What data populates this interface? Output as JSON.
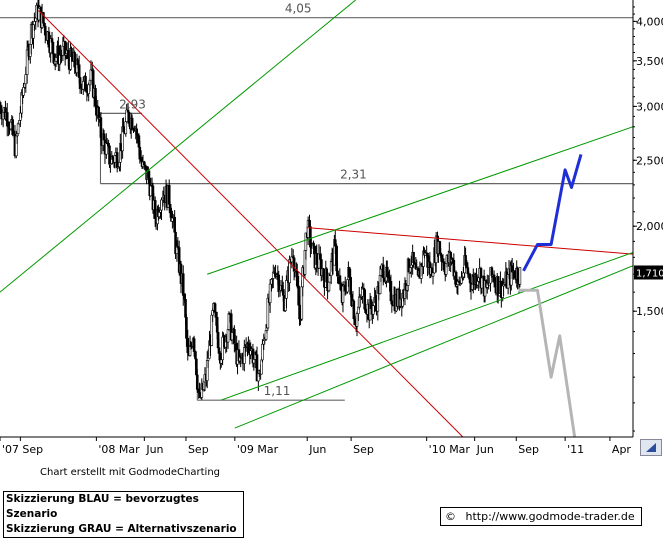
{
  "chart_data": {
    "type": "candlestick",
    "y_scale": "log",
    "ylim": [
      0.98,
      4.3
    ],
    "xlim": [
      "2007-08-01",
      "2011-05-31"
    ],
    "y_ticks": [
      {
        "value": 4.0,
        "label": "4,000"
      },
      {
        "value": 3.5,
        "label": "3,500"
      },
      {
        "value": 3.0,
        "label": "3,000"
      },
      {
        "value": 2.5,
        "label": "2,500"
      },
      {
        "value": 2.0,
        "label": "2,000"
      },
      {
        "value": 1.5,
        "label": "1,500"
      }
    ],
    "x_ticks": [
      {
        "date": "2007-08-01",
        "label": "'07"
      },
      {
        "date": "2007-09-15",
        "label": "Sep"
      },
      {
        "date": "2008-03-01",
        "label": "'08 Mar"
      },
      {
        "date": "2008-06-15",
        "label": "Jun"
      },
      {
        "date": "2008-09-15",
        "label": "Sep"
      },
      {
        "date": "2009-01-01",
        "label": "'09 Mar"
      },
      {
        "date": "2009-06-10",
        "label": "Jun"
      },
      {
        "date": "2009-09-15",
        "label": "Sep"
      },
      {
        "date": "2010-03-01",
        "label": "'10 Mar"
      },
      {
        "date": "2010-06-15",
        "label": "Jun"
      },
      {
        "date": "2010-09-15",
        "label": "Sep"
      },
      {
        "date": "2011-01-01",
        "label": "'11"
      },
      {
        "date": "2011-04-10",
        "label": "Apr"
      }
    ],
    "price_path": [
      [
        "2007-08-01",
        3.0
      ],
      [
        "2007-08-20",
        2.9
      ],
      [
        "2007-09-05",
        2.6
      ],
      [
        "2007-09-20",
        3.1
      ],
      [
        "2007-10-10",
        3.9
      ],
      [
        "2007-10-25",
        4.15
      ],
      [
        "2007-11-10",
        3.9
      ],
      [
        "2007-12-01",
        3.55
      ],
      [
        "2007-12-20",
        3.6
      ],
      [
        "2008-01-15",
        3.45
      ],
      [
        "2008-02-01",
        3.2
      ],
      [
        "2008-02-20",
        3.3
      ],
      [
        "2008-03-10",
        2.75
      ],
      [
        "2008-04-01",
        2.5
      ],
      [
        "2008-04-20",
        2.55
      ],
      [
        "2008-05-10",
        2.9
      ],
      [
        "2008-05-25",
        2.85
      ],
      [
        "2008-06-10",
        2.45
      ],
      [
        "2008-06-25",
        2.35
      ],
      [
        "2008-07-10",
        2.05
      ],
      [
        "2008-07-25",
        2.25
      ],
      [
        "2008-08-10",
        2.2
      ],
      [
        "2008-08-25",
        1.85
      ],
      [
        "2008-09-10",
        1.6
      ],
      [
        "2008-09-20",
        1.25
      ],
      [
        "2008-10-01",
        1.4
      ],
      [
        "2008-10-15",
        1.1
      ],
      [
        "2008-10-30",
        1.2
      ],
      [
        "2008-11-15",
        1.5
      ],
      [
        "2008-12-01",
        1.3
      ],
      [
        "2008-12-20",
        1.45
      ],
      [
        "2009-01-10",
        1.25
      ],
      [
        "2009-02-01",
        1.35
      ],
      [
        "2009-02-25",
        1.2
      ],
      [
        "2009-03-15",
        1.5
      ],
      [
        "2009-04-01",
        1.75
      ],
      [
        "2009-04-20",
        1.55
      ],
      [
        "2009-05-10",
        1.85
      ],
      [
        "2009-05-25",
        1.45
      ],
      [
        "2009-06-10",
        2.0
      ],
      [
        "2009-06-25",
        1.8
      ],
      [
        "2009-07-10",
        1.75
      ],
      [
        "2009-07-25",
        1.65
      ],
      [
        "2009-08-10",
        1.85
      ],
      [
        "2009-08-25",
        1.55
      ],
      [
        "2009-09-10",
        1.7
      ],
      [
        "2009-09-25",
        1.45
      ],
      [
        "2009-10-10",
        1.6
      ],
      [
        "2009-10-25",
        1.5
      ],
      [
        "2009-11-10",
        1.55
      ],
      [
        "2009-11-25",
        1.75
      ],
      [
        "2009-12-10",
        1.6
      ],
      [
        "2009-12-25",
        1.55
      ],
      [
        "2010-01-10",
        1.6
      ],
      [
        "2010-01-25",
        1.8
      ],
      [
        "2010-02-10",
        1.65
      ],
      [
        "2010-02-25",
        1.85
      ],
      [
        "2010-03-10",
        1.7
      ],
      [
        "2010-03-25",
        1.9
      ],
      [
        "2010-04-10",
        1.75
      ],
      [
        "2010-04-25",
        1.8
      ],
      [
        "2010-05-10",
        1.62
      ],
      [
        "2010-05-25",
        1.75
      ],
      [
        "2010-06-10",
        1.65
      ],
      [
        "2010-06-25",
        1.72
      ],
      [
        "2010-07-10",
        1.6
      ],
      [
        "2010-07-25",
        1.7
      ],
      [
        "2010-08-10",
        1.62
      ],
      [
        "2010-08-25",
        1.66
      ],
      [
        "2010-09-10",
        1.72
      ],
      [
        "2010-09-25",
        1.7
      ]
    ],
    "horizontal_levels": [
      {
        "value": 4.05,
        "label": "4,05",
        "from": "2007-08-01",
        "to": "2011-05-31"
      },
      {
        "value": 2.93,
        "label": "2,93",
        "from": "2008-03-10",
        "to": "2008-06-10"
      },
      {
        "value": 2.31,
        "label": "2,31",
        "from": "2008-03-10",
        "to": "2011-05-31"
      },
      {
        "value": 1.11,
        "label": "1,11",
        "from": "2008-10-10",
        "to": "2009-09-01"
      }
    ],
    "trendlines": [
      {
        "color": "#cc0000",
        "points": [
          [
            "2007-10-25",
            4.15
          ],
          [
            "2010-05-20",
            0.98
          ]
        ]
      },
      {
        "color": "#cc0000",
        "points": [
          [
            "2009-06-10",
            1.99
          ],
          [
            "2011-05-31",
            1.82
          ]
        ]
      },
      {
        "color": "#009900",
        "points": [
          [
            "2007-08-01",
            1.6
          ],
          [
            "2009-09-25",
            4.3
          ]
        ]
      },
      {
        "color": "#009900",
        "points": [
          [
            "2008-11-01",
            1.7
          ],
          [
            "2011-05-31",
            2.8
          ]
        ]
      },
      {
        "color": "#009900",
        "points": [
          [
            "2008-12-01",
            1.11
          ],
          [
            "2011-05-31",
            1.83
          ]
        ]
      },
      {
        "color": "#009900",
        "points": [
          [
            "2009-01-01",
            1.01
          ],
          [
            "2011-05-31",
            1.75
          ]
        ]
      }
    ],
    "scenarios": [
      {
        "label": "Skizzierung BLAU = bevorzugtes Szenario",
        "color": "#1f2fd8",
        "points": [
          [
            "2010-10-01",
            1.72
          ],
          [
            "2010-11-01",
            1.88
          ],
          [
            "2010-12-01",
            1.88
          ],
          [
            "2011-01-01",
            2.42
          ],
          [
            "2011-01-15",
            2.28
          ],
          [
            "2011-02-05",
            2.55
          ]
        ]
      },
      {
        "label": "Skizzierung GRAU = Alternativszenario",
        "color": "#b5b5b5",
        "points": [
          [
            "2010-09-20",
            1.61
          ],
          [
            "2010-11-01",
            1.61
          ],
          [
            "2010-12-01",
            1.2
          ],
          [
            "2010-12-20",
            1.38
          ],
          [
            "2011-01-25",
            0.95
          ]
        ]
      }
    ],
    "last_price": {
      "value": 1.71,
      "label": "1,710"
    }
  },
  "footer": {
    "credit": "Chart erstellt mit GodmodeCharting",
    "legend_lines": [
      "Skizzierung BLAU = bevorzugtes Szenario",
      "Skizzierung GRAU = Alternativszenario"
    ],
    "copyright_symbol": "©",
    "url": "http://www.godmode-trader.de"
  }
}
